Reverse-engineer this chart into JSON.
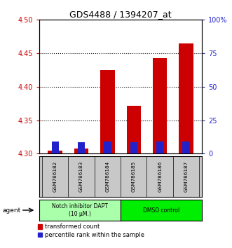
{
  "title": "GDS4488 / 1394207_at",
  "samples": [
    "GSM786182",
    "GSM786183",
    "GSM786184",
    "GSM786185",
    "GSM786186",
    "GSM786187"
  ],
  "red_values": [
    4.305,
    4.308,
    4.425,
    4.372,
    4.443,
    4.465
  ],
  "blue_values": [
    4.318,
    4.317,
    4.318,
    4.317,
    4.318,
    4.318
  ],
  "red_bar_bottom": 4.3,
  "ylim_left": [
    4.3,
    4.5
  ],
  "ylim_right": [
    0,
    100
  ],
  "yticks_left": [
    4.3,
    4.35,
    4.4,
    4.45,
    4.5
  ],
  "yticks_right": [
    0,
    25,
    50,
    75,
    100
  ],
  "ytick_labels_right": [
    "0",
    "25",
    "50",
    "75",
    "100%"
  ],
  "group1_label": "Notch inhibitor DAPT\n(10 μM.)",
  "group2_label": "DMSO control",
  "group1_color": "#aaffaa",
  "group2_color": "#00ee00",
  "agent_label": "agent",
  "legend_red": "transformed count",
  "legend_blue": "percentile rank within the sample",
  "bar_width": 0.55,
  "red_color": "#cc0000",
  "blue_color": "#2222cc",
  "sample_bg_color": "#c8c8c8",
  "left_tick_color": "#cc0000",
  "right_tick_color": "#2222cc",
  "title_fontsize": 9,
  "tick_fontsize": 7,
  "label_fontsize": 6,
  "legend_fontsize": 6
}
